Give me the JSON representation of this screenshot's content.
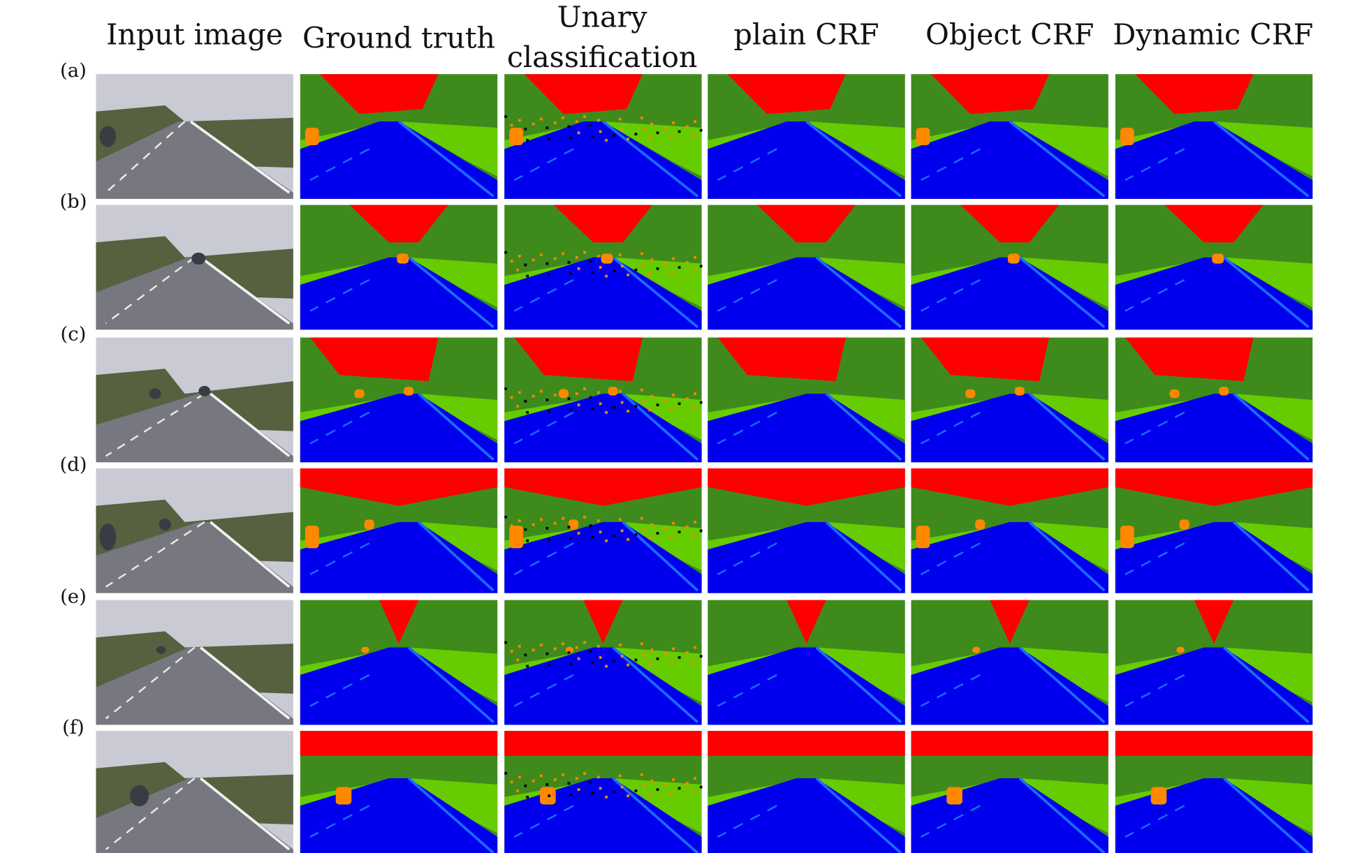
{
  "columns": [
    [
      "Input image"
    ],
    [
      "Ground truth"
    ],
    [
      "Unary",
      "classification"
    ],
    [
      "plain CRF"
    ],
    [
      "Object CRF"
    ],
    [
      "Dynamic CRF"
    ]
  ],
  "rows": [
    "(a)",
    "(b)",
    "(c)",
    "(d)",
    "(e)",
    "(f)"
  ]
}
